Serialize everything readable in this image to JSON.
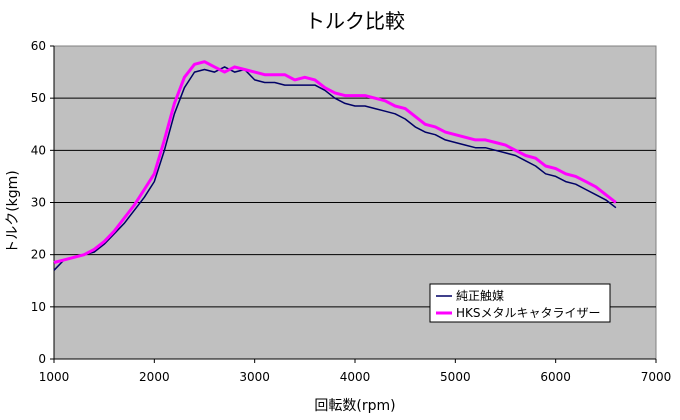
{
  "chart_data": {
    "type": "line",
    "title": "トルク比較",
    "xlabel": "回転数(rpm)",
    "ylabel": "トルク(kgm)",
    "xlim": [
      1000,
      7000
    ],
    "ylim": [
      0,
      60
    ],
    "x_ticks": [
      "1000",
      "2000",
      "3000",
      "4000",
      "5000",
      "6000",
      "7000"
    ],
    "y_ticks": [
      "0",
      "10",
      "20",
      "30",
      "40",
      "50",
      "60"
    ],
    "grid": true,
    "legend_position": "bottom-right",
    "plot_background": "#c0c0c0",
    "series": [
      {
        "name": "純正触媒",
        "color": "#000066",
        "x": [
          1000,
          1100,
          1200,
          1300,
          1400,
          1500,
          1600,
          1700,
          1800,
          1900,
          2000,
          2100,
          2200,
          2300,
          2400,
          2500,
          2600,
          2700,
          2800,
          2900,
          3000,
          3100,
          3200,
          3300,
          3400,
          3500,
          3600,
          3700,
          3800,
          3900,
          4000,
          4100,
          4200,
          4300,
          4400,
          4500,
          4600,
          4700,
          4800,
          4900,
          5000,
          5100,
          5200,
          5300,
          5400,
          5500,
          5600,
          5700,
          5800,
          5900,
          6000,
          6100,
          6200,
          6300,
          6400,
          6500,
          6600
        ],
        "y": [
          17,
          19,
          19.5,
          20,
          20.5,
          22,
          24,
          26,
          28.5,
          31,
          34,
          40,
          47,
          52,
          55,
          55.5,
          55,
          56,
          55,
          55.5,
          53.5,
          53,
          53,
          52.5,
          52.5,
          52.5,
          52.5,
          51.5,
          50,
          49,
          48.5,
          48.5,
          48,
          47.5,
          47,
          46,
          44.5,
          43.5,
          43,
          42,
          41.5,
          41,
          40.5,
          40.5,
          40,
          39.5,
          39,
          38,
          37,
          35.5,
          35,
          34,
          33.5,
          32.5,
          31.5,
          30.5,
          29
        ]
      },
      {
        "name": "HKSメタルキャタライザー",
        "color": "#ff00ff",
        "x": [
          1000,
          1100,
          1200,
          1300,
          1400,
          1500,
          1600,
          1700,
          1800,
          1900,
          2000,
          2100,
          2200,
          2300,
          2400,
          2500,
          2600,
          2700,
          2800,
          2900,
          3000,
          3100,
          3200,
          3300,
          3400,
          3500,
          3600,
          3700,
          3800,
          3900,
          4000,
          4100,
          4200,
          4300,
          4400,
          4500,
          4600,
          4700,
          4800,
          4900,
          5000,
          5100,
          5200,
          5300,
          5400,
          5500,
          5600,
          5700,
          5800,
          5900,
          6000,
          6100,
          6200,
          6300,
          6400,
          6500,
          6600
        ],
        "y": [
          18.5,
          19,
          19.5,
          20,
          21,
          22.5,
          24.5,
          27,
          29.5,
          32.5,
          35.5,
          42,
          49,
          54,
          56.5,
          57,
          56,
          55,
          56,
          55.5,
          55,
          54.5,
          54.5,
          54.5,
          53.5,
          54,
          53.5,
          52,
          51,
          50.5,
          50.5,
          50.5,
          50,
          49.5,
          48.5,
          48,
          46.5,
          45,
          44.5,
          43.5,
          43,
          42.5,
          42,
          42,
          41.5,
          41,
          40,
          39,
          38.5,
          37,
          36.5,
          35.5,
          35,
          34,
          33,
          31.5,
          30
        ]
      }
    ]
  }
}
